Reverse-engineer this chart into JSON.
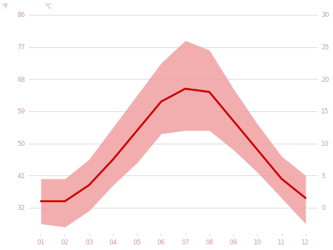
{
  "months": [
    1,
    2,
    3,
    4,
    5,
    6,
    7,
    8,
    9,
    10,
    11,
    12
  ],
  "month_labels": [
    "01",
    "02",
    "03",
    "04",
    "05",
    "06",
    "07",
    "08",
    "09",
    "10",
    "11",
    "12"
  ],
  "avg_temp_c": [
    1.0,
    1.0,
    3.5,
    7.5,
    12.0,
    16.5,
    18.5,
    18.0,
    13.5,
    9.0,
    4.5,
    1.5
  ],
  "max_temp_c": [
    4.5,
    4.5,
    7.5,
    12.5,
    17.5,
    22.5,
    26.0,
    24.5,
    18.5,
    13.0,
    8.0,
    5.0
  ],
  "min_temp_c": [
    -2.5,
    -3.0,
    -0.5,
    3.5,
    7.0,
    11.5,
    12.0,
    12.0,
    9.0,
    5.5,
    1.5,
    -2.5
  ],
  "line_color": "#cc0000",
  "fill_color": "#f0a0a0",
  "fill_alpha": 0.85,
  "yticks_c": [
    0,
    5,
    10,
    15,
    20,
    25,
    30
  ],
  "yticks_f": [
    32,
    41,
    50,
    59,
    68,
    77,
    86
  ],
  "ylim_c": [
    -4,
    30
  ],
  "grid_color": "#dddddd",
  "background_color": "#ffffff",
  "tick_label_color": "#cc9999",
  "left_axis_label": "°F",
  "right_axis_label": "°C"
}
